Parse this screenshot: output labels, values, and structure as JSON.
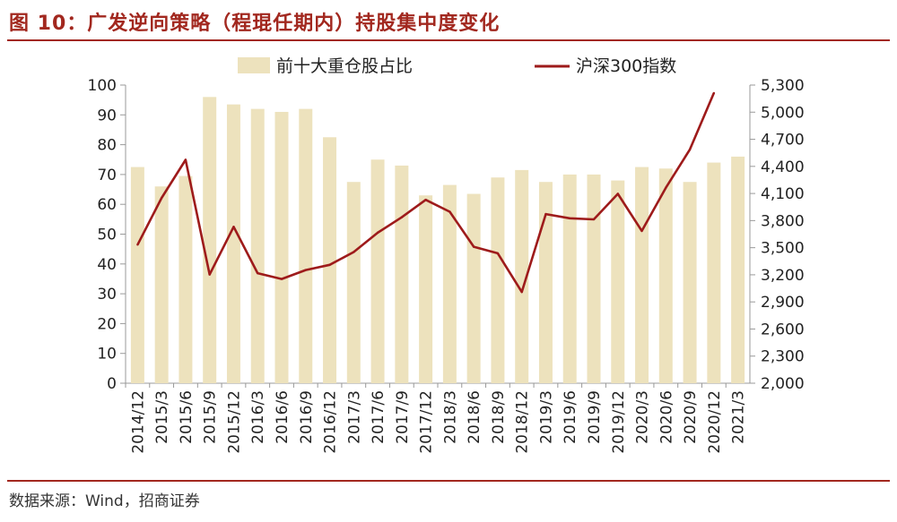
{
  "title": "图 10：广发逆向策略（程琨任期内）持股集中度变化",
  "source": "数据来源：Wind，招商证券",
  "colors": {
    "bar": "#ede2bd",
    "line": "#9e1b1b",
    "accent": "#a2281f"
  },
  "chart_data": {
    "type": "bar+line",
    "title": "广发逆向策略（程琨任期内）持股集中度变化",
    "categories": [
      "2014/12",
      "2015/3",
      "2015/6",
      "2015/9",
      "2015/12",
      "2016/3",
      "2016/6",
      "2016/9",
      "2016/12",
      "2017/3",
      "2017/6",
      "2017/9",
      "2017/12",
      "2018/3",
      "2018/6",
      "2018/9",
      "2018/12",
      "2019/3",
      "2019/6",
      "2019/9",
      "2019/12",
      "2020/3",
      "2020/6",
      "2020/9",
      "2020/12",
      "2021/3"
    ],
    "series": [
      {
        "name": "前十大重仓股占比",
        "type": "bar",
        "axis": "left",
        "values": [
          72.5,
          66,
          69.5,
          96,
          93.5,
          92,
          91,
          92,
          82.5,
          67.5,
          75,
          73,
          63,
          66.5,
          63.5,
          69,
          71.5,
          67.5,
          70,
          70,
          68,
          72.5,
          72,
          67.5,
          74,
          76
        ]
      },
      {
        "name": "沪深300指数",
        "type": "line",
        "axis": "right",
        "values": [
          3533,
          4051,
          4473,
          3203,
          3731,
          3218,
          3154,
          3253,
          3310,
          3452,
          3666,
          3836,
          4030,
          3898,
          3510,
          3438,
          3010,
          3872,
          3825,
          3814,
          4096,
          3686,
          4163,
          4587,
          5211,
          null
        ]
      }
    ],
    "left_axis": {
      "ylim": [
        0,
        100
      ],
      "ticks": [
        "0",
        "10",
        "20",
        "30",
        "40",
        "50",
        "60",
        "70",
        "80",
        "90",
        "100"
      ]
    },
    "right_axis": {
      "ylim": [
        2000,
        5300
      ],
      "ticks": [
        "2,000",
        "2,300",
        "2,600",
        "2,900",
        "3,200",
        "3,500",
        "3,800",
        "4,100",
        "4,400",
        "4,700",
        "5,000",
        "5,300"
      ]
    },
    "legend": [
      "前十大重仓股占比",
      "沪深300指数"
    ],
    "legend_position": "top"
  }
}
